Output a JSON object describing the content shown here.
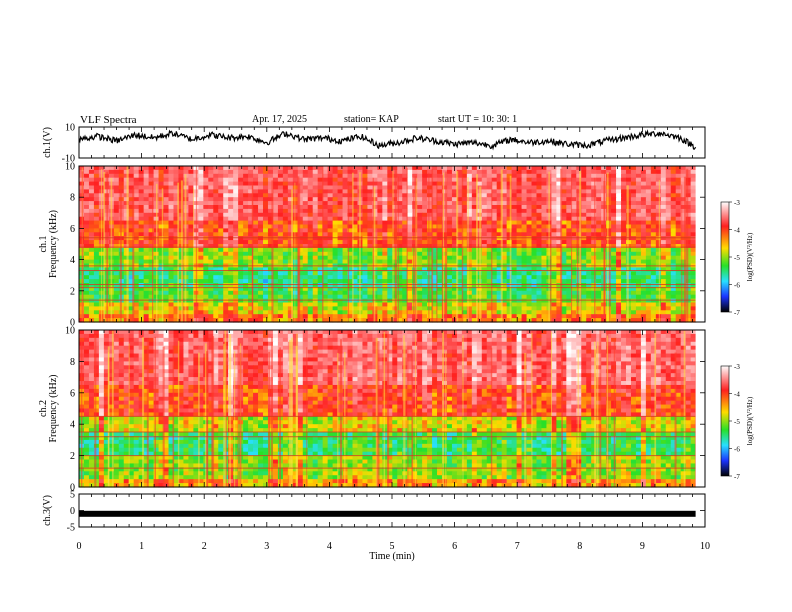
{
  "header": {
    "title": "VLF Spectra",
    "date": "Apr. 17, 2025",
    "station": "station= KAP",
    "start_ut": "start  UT  =   10: 30: 1"
  },
  "chart_data": [
    {
      "type": "line",
      "panel": "ch1-waveform",
      "ylabel": "ch.1(V)",
      "ylim": [
        -10,
        10
      ],
      "ytick_labels": [
        "10",
        "-10"
      ],
      "xlim": [
        0,
        10
      ],
      "note_series": "waveform amplitude (V) vs time (min), approximate shape",
      "x": [
        0,
        0.3,
        0.6,
        0.9,
        1.2,
        1.5,
        1.8,
        2.1,
        2.4,
        2.7,
        3.0,
        3.3,
        3.6,
        3.9,
        4.2,
        4.5,
        4.8,
        5.1,
        5.4,
        5.7,
        6.0,
        6.3,
        6.6,
        6.9,
        7.2,
        7.5,
        7.8,
        8.1,
        8.4,
        8.7,
        9.0,
        9.3,
        9.6,
        9.85
      ],
      "y": [
        2,
        4,
        1,
        5,
        3,
        6,
        2,
        5,
        3,
        4,
        0,
        6,
        2,
        3,
        1,
        4,
        -2,
        0,
        3,
        1,
        -1,
        0,
        -2,
        2,
        0,
        1,
        -1,
        -2,
        1,
        3,
        5,
        6,
        3,
        -3
      ]
    },
    {
      "type": "heatmap",
      "panel": "ch1-spectrogram",
      "ylabel": "ch.1\nFrequency  (kHz)",
      "ylim": [
        0,
        10
      ],
      "xlim": [
        0,
        10
      ],
      "ytick_labels": [
        "0",
        "2",
        "4",
        "6",
        "8",
        "10"
      ],
      "colorbar": {
        "label": "log(PSD)(V²/Hz)",
        "range": [
          -7,
          -3
        ],
        "tick_labels": [
          "-3",
          "-4",
          "-5",
          "-6",
          "-7"
        ]
      },
      "bands": [
        {
          "from_khz": 0,
          "to_khz": 0.5,
          "level": -4.5
        },
        {
          "from_khz": 0.5,
          "to_khz": 1.3,
          "level": -4.9
        },
        {
          "from_khz": 1.3,
          "to_khz": 2.2,
          "level": -5.4
        },
        {
          "from_khz": 2.2,
          "to_khz": 3.6,
          "level": -5.6
        },
        {
          "from_khz": 3.6,
          "to_khz": 4.8,
          "level": -5.2
        },
        {
          "from_khz": 4.8,
          "to_khz": 6.5,
          "level": -4.3
        },
        {
          "from_khz": 6.5,
          "to_khz": 10,
          "level": -3.9
        }
      ],
      "lines_khz": [
        1.4,
        2.2,
        2.4,
        3.3,
        3.6,
        4.8,
        5.4
      ]
    },
    {
      "type": "heatmap",
      "panel": "ch2-spectrogram",
      "ylabel": "ch.2\nFrequency  (kHz)",
      "ylim": [
        0,
        10
      ],
      "xlim": [
        0,
        10
      ],
      "ytick_labels": [
        "0",
        "2",
        "4",
        "6",
        "8",
        "10"
      ],
      "colorbar": {
        "label": "log(PSD)(V²/Hz)",
        "range": [
          -7,
          -3
        ],
        "tick_labels": [
          "-3",
          "-4",
          "-5",
          "-6",
          "-7"
        ]
      },
      "bands": [
        {
          "from_khz": 0,
          "to_khz": 0.5,
          "level": -4.6
        },
        {
          "from_khz": 0.5,
          "to_khz": 2.0,
          "level": -5.1
        },
        {
          "from_khz": 2.0,
          "to_khz": 3.5,
          "level": -5.5
        },
        {
          "from_khz": 3.5,
          "to_khz": 4.6,
          "level": -4.9
        },
        {
          "from_khz": 4.6,
          "to_khz": 6.5,
          "level": -4.2
        },
        {
          "from_khz": 6.5,
          "to_khz": 10,
          "level": -3.8
        }
      ],
      "lines_khz": [
        1.2,
        2.0,
        3.2,
        3.5,
        4.5
      ]
    },
    {
      "type": "line",
      "panel": "ch3-waveform",
      "ylabel": "ch.3(V)",
      "ylim": [
        -5,
        5
      ],
      "ytick_labels": [
        "5",
        "0",
        "-5"
      ],
      "xlim": [
        0,
        10
      ],
      "x": [
        0,
        9.85
      ],
      "y": [
        -1,
        -1
      ],
      "xlabel": "Time  (min)",
      "xtick_labels": [
        "0",
        "1",
        "2",
        "3",
        "4",
        "5",
        "6",
        "7",
        "8",
        "9",
        "10"
      ]
    }
  ],
  "colors": {
    "scale": [
      "#ffffff",
      "#ff2a2a",
      "#ffd700",
      "#2fdf2f",
      "#27e0ff",
      "#1f3cff",
      "#000000"
    ]
  }
}
